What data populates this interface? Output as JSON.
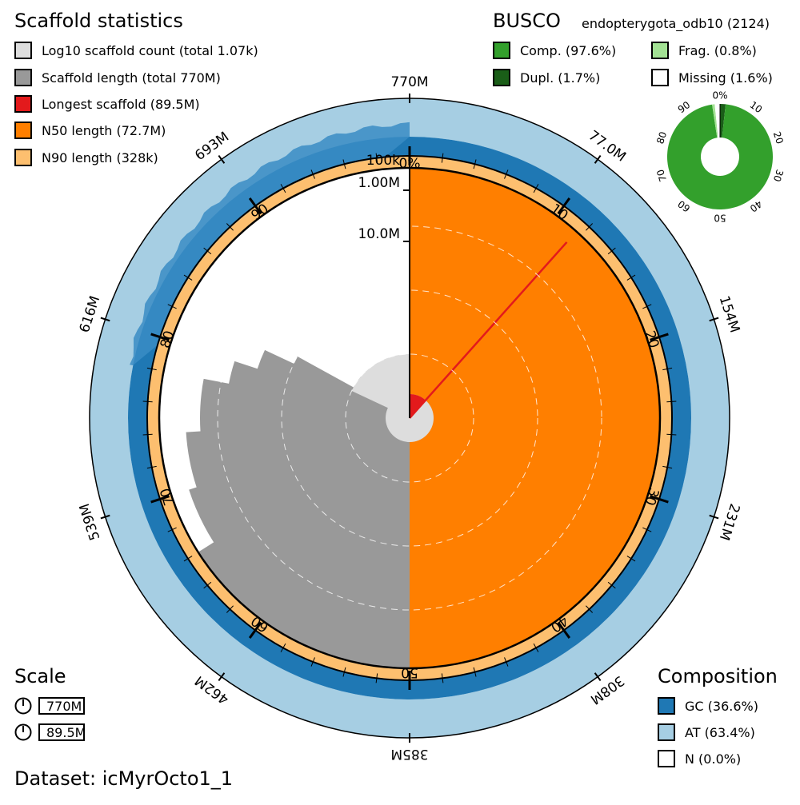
{
  "title": "Scaffold statistics",
  "dataset_label": "Dataset: icMyrOcto1_1",
  "legend_stats": [
    {
      "label": "Log10 scaffold count (total 1.07k)",
      "color": "#dddddd"
    },
    {
      "label": "Scaffold length (total 770M)",
      "color": "#999999"
    },
    {
      "label": "Longest scaffold (89.5M)",
      "color": "#e31a1c"
    },
    {
      "label": "N50 length (72.7M)",
      "color": "#ff7f00"
    },
    {
      "label": "N90 length (328k)",
      "color": "#fdbf6f"
    }
  ],
  "busco": {
    "title": "BUSCO",
    "lineage": "endopterygota_odb10 (2124)",
    "legend": [
      {
        "label": "Comp. (97.6%)",
        "color": "#33a02c"
      },
      {
        "label": "Frag. (0.8%)",
        "color": "#a3e294"
      },
      {
        "label": "Dupl. (1.7%)",
        "color": "#1a5e18"
      },
      {
        "label": "Missing (1.6%)",
        "color": "#ffffff"
      }
    ],
    "ticks": [
      "0%",
      "10",
      "20",
      "30",
      "40",
      "50",
      "60",
      "70",
      "80",
      "90"
    ]
  },
  "scale": {
    "title": "Scale",
    "values": [
      "770M",
      "89.5M"
    ]
  },
  "composition": {
    "title": "Composition",
    "legend": [
      {
        "label": "GC (36.6%)",
        "color": "#1f78b4"
      },
      {
        "label": "AT (63.4%)",
        "color": "#a6cee3"
      },
      {
        "label": "N (0.0%)",
        "color": "#ffffff"
      }
    ]
  },
  "chart_data": {
    "type": "snail",
    "title": "Scaffold statistics",
    "total_length": "770M",
    "scaffold_count": "1.07k",
    "longest_scaffold_mb": 89.5,
    "n50_length_mb": 72.7,
    "n90_length_kb": 328,
    "percent_ticks": [
      "0%",
      "10",
      "20",
      "30",
      "40",
      "50",
      "60",
      "70",
      "80",
      "90"
    ],
    "length_ticks": [
      "770M",
      "77.0M",
      "154M",
      "231M",
      "308M",
      "385M",
      "462M",
      "539M",
      "616M",
      "693M"
    ],
    "radial_ticks": [
      "100k",
      "1.00M",
      "10.0M"
    ],
    "n50_end_percent": 50,
    "n90_end_percent": 93.6,
    "longest_scaffold_percent": 11.6,
    "gc_percent": 36.6,
    "at_percent": 63.4,
    "n_percent": 0.0,
    "busco": {
      "complete": 97.6,
      "duplicated": 1.7,
      "fragmented": 0.8,
      "missing": 1.6,
      "lineage": "endopterygota_odb10",
      "total": 2124
    }
  }
}
